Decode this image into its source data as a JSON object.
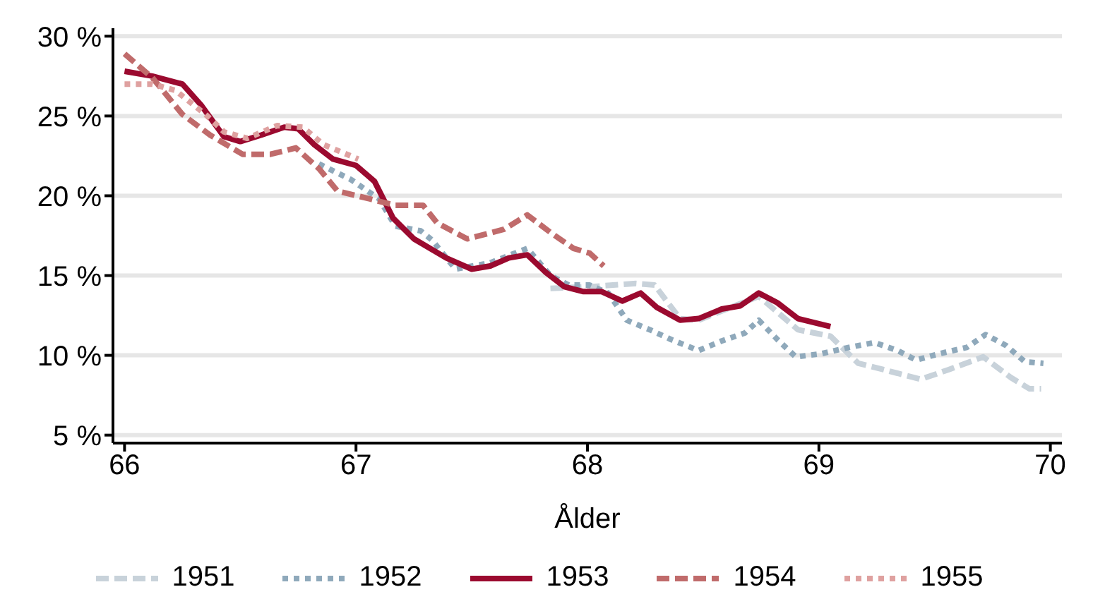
{
  "chart_data": {
    "type": "line",
    "xlabel": "Ålder",
    "xlim": [
      65.95,
      70.05
    ],
    "xticks": [
      66,
      67,
      68,
      69,
      70
    ],
    "ylim": [
      4.5,
      30.5
    ],
    "yticks": [
      {
        "value": 5,
        "label": "5 %"
      },
      {
        "value": 10,
        "label": "10 %"
      },
      {
        "value": 15,
        "label": "15 %"
      },
      {
        "value": 20,
        "label": "20 %"
      },
      {
        "value": 25,
        "label": "25 %"
      },
      {
        "value": 30,
        "label": "30 %"
      }
    ],
    "grid": "y",
    "legend": "bottom",
    "marker": "none",
    "series": [
      {
        "name": "1951",
        "color": "#c8d2da",
        "line_style": "dashed",
        "x": [
          67.84,
          68.01,
          68.21,
          68.29,
          68.4,
          68.48,
          68.74,
          68.91,
          69.05,
          69.17,
          69.28,
          69.44,
          69.56,
          69.71,
          69.83,
          69.91,
          69.96
        ],
        "values": [
          14.2,
          14.3,
          14.5,
          14.4,
          12.3,
          12.2,
          13.7,
          11.6,
          11.2,
          9.5,
          9.1,
          8.5,
          9.1,
          9.9,
          8.6,
          7.9,
          7.9
        ]
      },
      {
        "name": "1952",
        "color": "#8fa9bb",
        "line_style": "dotted",
        "x": [
          66.84,
          66.98,
          67.1,
          67.17,
          67.28,
          67.33,
          67.43,
          67.58,
          67.74,
          67.84,
          67.92,
          68.01,
          68.09,
          68.17,
          68.27,
          68.36,
          68.48,
          68.58,
          68.68,
          68.74,
          68.82,
          68.9,
          69.01,
          69.13,
          69.24,
          69.34,
          69.42,
          69.52,
          69.64,
          69.72,
          69.81,
          69.89,
          69.97
        ],
        "values": [
          22.0,
          21.0,
          19.8,
          18.1,
          17.8,
          17.2,
          15.4,
          15.8,
          16.7,
          15.0,
          14.4,
          14.4,
          13.9,
          12.2,
          11.6,
          11.0,
          10.3,
          10.9,
          11.4,
          12.2,
          11.0,
          9.9,
          10.1,
          10.5,
          10.8,
          10.3,
          9.7,
          10.1,
          10.5,
          11.3,
          10.6,
          9.6,
          9.5
        ]
      },
      {
        "name": "1953",
        "color": "#9b0a2f",
        "line_style": "solid",
        "x": [
          66.0,
          66.12,
          66.25,
          66.33,
          66.43,
          66.5,
          66.59,
          66.69,
          66.75,
          66.82,
          66.9,
          67.0,
          67.08,
          67.16,
          67.25,
          67.39,
          67.5,
          67.58,
          67.66,
          67.74,
          67.82,
          67.9,
          67.98,
          68.06,
          68.15,
          68.23,
          68.3,
          68.4,
          68.48,
          68.58,
          68.66,
          68.74,
          68.82,
          68.91,
          69.05
        ],
        "values": [
          27.8,
          27.5,
          27.0,
          25.7,
          23.7,
          23.4,
          23.8,
          24.3,
          24.2,
          23.2,
          22.3,
          21.9,
          20.9,
          18.6,
          17.3,
          16.1,
          15.4,
          15.6,
          16.1,
          16.3,
          15.2,
          14.3,
          14.0,
          14.0,
          13.4,
          13.9,
          13.0,
          12.2,
          12.3,
          12.9,
          13.1,
          13.9,
          13.3,
          12.3,
          11.8
        ]
      },
      {
        "name": "1954",
        "color": "#c06b6b",
        "line_style": "dashed",
        "x": [
          66.0,
          66.12,
          66.25,
          66.37,
          66.51,
          66.63,
          66.74,
          66.84,
          66.92,
          67.06,
          67.17,
          67.29,
          67.35,
          67.48,
          67.64,
          67.74,
          67.84,
          67.94,
          68.01,
          68.07
        ],
        "values": [
          28.9,
          27.4,
          25.1,
          23.8,
          22.6,
          22.6,
          23.0,
          21.7,
          20.3,
          19.8,
          19.4,
          19.4,
          18.3,
          17.3,
          17.9,
          18.8,
          17.7,
          16.7,
          16.4,
          15.6
        ]
      },
      {
        "name": "1955",
        "color": "#dfa1a0",
        "line_style": "dotted",
        "x": [
          66.0,
          66.12,
          66.22,
          66.35,
          66.43,
          66.53,
          66.66,
          66.77,
          66.86,
          67.01
        ],
        "values": [
          27.0,
          27.0,
          26.6,
          25.1,
          24.0,
          23.6,
          24.4,
          24.3,
          23.2,
          22.3
        ]
      }
    ]
  }
}
